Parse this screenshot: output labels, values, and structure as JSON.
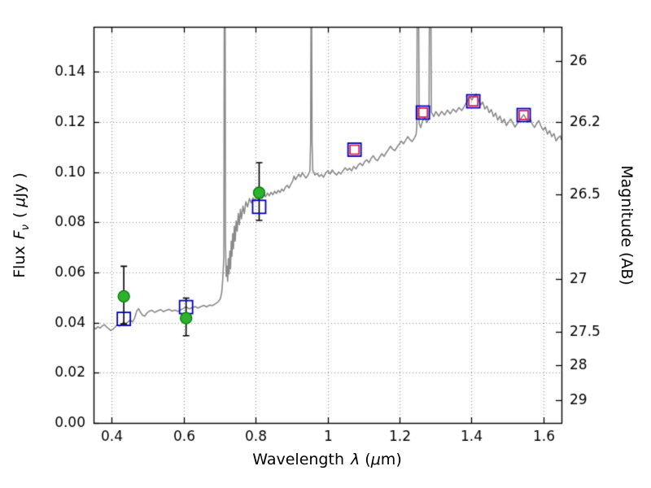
{
  "figure": {
    "background": "#ffffff"
  },
  "labels": {
    "x_word": "Wavelength",
    "x_lambda": "λ",
    "x_unit_open": "(",
    "x_mu": "μ",
    "x_unit_close": "m)",
    "flux_word": "Flux",
    "flux_symbol": "F",
    "flux_sub": "ν",
    "flux_unit_open": "(",
    "flux_mu": "μ",
    "flux_unit_close": "Jy )",
    "right_axis": "Magnitude (AB)"
  },
  "chart_data": {
    "type": "line",
    "xlabel": "Wavelength λ (μm)",
    "ylabel_left": "Flux Fν ( μJy )",
    "ylabel_right": "Magnitude (AB)",
    "xlim": [
      0.35,
      1.65
    ],
    "ylim": [
      0,
      0.158
    ],
    "grid": "dotted",
    "legend": "none",
    "x_ticks": [
      {
        "v": 0.4,
        "label": "0.4"
      },
      {
        "v": 0.6,
        "label": "0.6"
      },
      {
        "v": 0.8,
        "label": "0.8"
      },
      {
        "v": 1.0,
        "label": "1"
      },
      {
        "v": 1.2,
        "label": "1.2"
      },
      {
        "v": 1.4,
        "label": "1.4"
      },
      {
        "v": 1.6,
        "label": "1.6"
      }
    ],
    "y_ticks_left": [
      {
        "v": 0.0,
        "label": "0.00"
      },
      {
        "v": 0.02,
        "label": "0.02"
      },
      {
        "v": 0.04,
        "label": "0.04"
      },
      {
        "v": 0.06,
        "label": "0.06"
      },
      {
        "v": 0.08,
        "label": "0.08"
      },
      {
        "v": 0.1,
        "label": "0.10"
      },
      {
        "v": 0.12,
        "label": "0.12"
      },
      {
        "v": 0.14,
        "label": "0.14"
      }
    ],
    "y_ticks_right": [
      {
        "label": "26",
        "flux": 0.1445
      },
      {
        "label": "26.2",
        "flux": 0.1202
      },
      {
        "label": "26.5",
        "flux": 0.0912
      },
      {
        "label": "27",
        "flux": 0.0575
      },
      {
        "label": "27.5",
        "flux": 0.0363
      },
      {
        "label": "28",
        "flux": 0.0229
      },
      {
        "label": "29",
        "flux": 0.00912
      }
    ],
    "colors": {
      "spectrum": "#8a8a8a",
      "grid": "#8c8c8c",
      "axis": "#000000",
      "errorbar": "#000000",
      "model_square": "#0000bb",
      "red_square": "#d62755",
      "circle_fill": "#2bb32b",
      "circle_edge": "#0d7a0d"
    },
    "series": {
      "model_squares": {
        "name": "model photometry (open blue squares)",
        "marker": "open-square",
        "size": 16,
        "color": "#0000bb",
        "points": [
          [
            0.434,
            0.0415
          ],
          [
            0.607,
            0.0462
          ],
          [
            0.81,
            0.0862
          ],
          [
            1.075,
            0.109
          ],
          [
            1.265,
            0.1238
          ],
          [
            1.405,
            0.1283
          ],
          [
            1.545,
            0.1228
          ]
        ]
      },
      "observed_red_squares": {
        "name": "observed IR photometry (open red squares)",
        "marker": "open-square",
        "size": 11,
        "color": "#d62755",
        "points": [
          [
            1.075,
            0.109
          ],
          [
            1.265,
            0.1238
          ],
          [
            1.405,
            0.1283
          ],
          [
            1.545,
            0.1228
          ]
        ]
      },
      "observed_circles": {
        "name": "observed optical photometry (green circles with error bars)",
        "marker": "circle",
        "size": 14,
        "color": "#2bb32b",
        "edge": "#0d7a0d",
        "points": [
          [
            0.434,
            0.0505
          ],
          [
            0.607,
            0.0418
          ],
          [
            0.81,
            0.0918
          ]
        ],
        "yerr_lo": [
          0.011,
          0.007,
          0.011
        ],
        "yerr_hi": [
          0.012,
          0.008,
          0.012
        ]
      },
      "spectrum": {
        "name": "best-fit galaxy spectrum",
        "color": "#8a8a8a",
        "points": [
          [
            0.35,
            0.038
          ],
          [
            0.356,
            0.0375
          ],
          [
            0.362,
            0.0384
          ],
          [
            0.368,
            0.0378
          ],
          [
            0.374,
            0.0387
          ],
          [
            0.38,
            0.0392
          ],
          [
            0.386,
            0.0383
          ],
          [
            0.392,
            0.0376
          ],
          [
            0.398,
            0.0369
          ],
          [
            0.404,
            0.0374
          ],
          [
            0.41,
            0.0383
          ],
          [
            0.416,
            0.0391
          ],
          [
            0.422,
            0.0386
          ],
          [
            0.428,
            0.0395
          ],
          [
            0.434,
            0.0401
          ],
          [
            0.44,
            0.0396
          ],
          [
            0.446,
            0.0404
          ],
          [
            0.452,
            0.041
          ],
          [
            0.458,
            0.0403
          ],
          [
            0.464,
            0.0418
          ],
          [
            0.47,
            0.0447
          ],
          [
            0.475,
            0.0456
          ],
          [
            0.48,
            0.0442
          ],
          [
            0.486,
            0.043
          ],
          [
            0.492,
            0.0426
          ],
          [
            0.498,
            0.0438
          ],
          [
            0.504,
            0.0445
          ],
          [
            0.512,
            0.0449
          ],
          [
            0.52,
            0.0441
          ],
          [
            0.528,
            0.0447
          ],
          [
            0.536,
            0.0452
          ],
          [
            0.544,
            0.0444
          ],
          [
            0.552,
            0.0449
          ],
          [
            0.56,
            0.0453
          ],
          [
            0.568,
            0.0446
          ],
          [
            0.576,
            0.045
          ],
          [
            0.584,
            0.0445
          ],
          [
            0.592,
            0.0451
          ],
          [
            0.6,
            0.0457
          ],
          [
            0.608,
            0.0462
          ],
          [
            0.616,
            0.0455
          ],
          [
            0.624,
            0.046
          ],
          [
            0.632,
            0.0464
          ],
          [
            0.64,
            0.0458
          ],
          [
            0.648,
            0.0464
          ],
          [
            0.656,
            0.0469
          ],
          [
            0.664,
            0.0463
          ],
          [
            0.672,
            0.047
          ],
          [
            0.68,
            0.0468
          ],
          [
            0.688,
            0.0475
          ],
          [
            0.696,
            0.0483
          ],
          [
            0.702,
            0.0495
          ],
          [
            0.706,
            0.052
          ],
          [
            0.709,
            0.0575
          ],
          [
            0.712,
            0.066
          ],
          [
            0.7135,
            0.2
          ],
          [
            0.715,
            0.2
          ],
          [
            0.7165,
            0.072
          ],
          [
            0.7185,
            0.0585
          ],
          [
            0.7205,
            0.0625
          ],
          [
            0.7225,
            0.0565
          ],
          [
            0.7245,
            0.0655
          ],
          [
            0.7265,
            0.0595
          ],
          [
            0.7285,
            0.0685
          ],
          [
            0.7305,
            0.0615
          ],
          [
            0.7325,
            0.0725
          ],
          [
            0.7345,
            0.0665
          ],
          [
            0.7365,
            0.0755
          ],
          [
            0.7385,
            0.0695
          ],
          [
            0.741,
            0.0785
          ],
          [
            0.7435,
            0.0725
          ],
          [
            0.746,
            0.0805
          ],
          [
            0.749,
            0.0765
          ],
          [
            0.752,
            0.0835
          ],
          [
            0.755,
            0.079
          ],
          [
            0.758,
            0.0852
          ],
          [
            0.761,
            0.0815
          ],
          [
            0.765,
            0.0865
          ],
          [
            0.769,
            0.0835
          ],
          [
            0.773,
            0.0882
          ],
          [
            0.778,
            0.0862
          ],
          [
            0.783,
            0.0895
          ],
          [
            0.788,
            0.0878
          ],
          [
            0.793,
            0.0898
          ],
          [
            0.798,
            0.0885
          ],
          [
            0.803,
            0.0903
          ],
          [
            0.808,
            0.089
          ],
          [
            0.813,
            0.0908
          ],
          [
            0.818,
            0.0896
          ],
          [
            0.823,
            0.0913
          ],
          [
            0.828,
            0.0902
          ],
          [
            0.833,
            0.0917
          ],
          [
            0.838,
            0.0906
          ],
          [
            0.843,
            0.092
          ],
          [
            0.848,
            0.091
          ],
          [
            0.853,
            0.0924
          ],
          [
            0.858,
            0.0915
          ],
          [
            0.863,
            0.0928
          ],
          [
            0.868,
            0.0919
          ],
          [
            0.873,
            0.0933
          ],
          [
            0.878,
            0.0925
          ],
          [
            0.883,
            0.094
          ],
          [
            0.888,
            0.0948
          ],
          [
            0.893,
            0.0937
          ],
          [
            0.898,
            0.0952
          ],
          [
            0.903,
            0.0965
          ],
          [
            0.907,
            0.0985
          ],
          [
            0.911,
            0.097
          ],
          [
            0.915,
            0.098
          ],
          [
            0.92,
            0.0992
          ],
          [
            0.925,
            0.0981
          ],
          [
            0.93,
            0.0999
          ],
          [
            0.935,
            0.0987
          ],
          [
            0.94,
            0.0977
          ],
          [
            0.945,
            0.0986
          ],
          [
            0.951,
            0.1005
          ],
          [
            0.953,
            0.112
          ],
          [
            0.955,
            0.2
          ],
          [
            0.957,
            0.112
          ],
          [
            0.959,
            0.1008
          ],
          [
            0.965,
            0.0989
          ],
          [
            0.971,
            0.0996
          ],
          [
            0.977,
            0.0983
          ],
          [
            0.983,
            0.0991
          ],
          [
            0.989,
            0.098
          ],
          [
            0.995,
            0.0997
          ],
          [
            1.001,
            0.1006
          ],
          [
            1.007,
            0.0993
          ],
          [
            1.013,
            0.1009
          ],
          [
            1.019,
            0.0997
          ],
          [
            1.025,
            0.0989
          ],
          [
            1.031,
            0.1001
          ],
          [
            1.037,
            0.0993
          ],
          [
            1.043,
            0.1006
          ],
          [
            1.049,
            0.1018
          ],
          [
            1.055,
            0.1008
          ],
          [
            1.061,
            0.1016
          ],
          [
            1.067,
            0.1006
          ],
          [
            1.073,
            0.1023
          ],
          [
            1.079,
            0.1013
          ],
          [
            1.085,
            0.1028
          ],
          [
            1.091,
            0.1036
          ],
          [
            1.097,
            0.1026
          ],
          [
            1.103,
            0.1042
          ],
          [
            1.109,
            0.105
          ],
          [
            1.115,
            0.1038
          ],
          [
            1.121,
            0.1055
          ],
          [
            1.127,
            0.1066
          ],
          [
            1.133,
            0.1052
          ],
          [
            1.139,
            0.1046
          ],
          [
            1.145,
            0.1061
          ],
          [
            1.151,
            0.1074
          ],
          [
            1.157,
            0.1063
          ],
          [
            1.163,
            0.1078
          ],
          [
            1.169,
            0.109
          ],
          [
            1.175,
            0.1104
          ],
          [
            1.181,
            0.1092
          ],
          [
            1.187,
            0.1086
          ],
          [
            1.193,
            0.11
          ],
          [
            1.199,
            0.1112
          ],
          [
            1.205,
            0.1124
          ],
          [
            1.211,
            0.1113
          ],
          [
            1.217,
            0.1128
          ],
          [
            1.223,
            0.1142
          ],
          [
            1.229,
            0.113
          ],
          [
            1.235,
            0.1122
          ],
          [
            1.241,
            0.1136
          ],
          [
            1.246,
            0.115
          ],
          [
            1.248,
            0.118
          ],
          [
            1.25,
            0.2
          ],
          [
            1.252,
            0.2
          ],
          [
            1.2545,
            0.1195
          ],
          [
            1.259,
            0.1178
          ],
          [
            1.264,
            0.1205
          ],
          [
            1.27,
            0.1218
          ],
          [
            1.276,
            0.1198
          ],
          [
            1.282,
            0.1215
          ],
          [
            1.284,
            0.2
          ],
          [
            1.286,
            0.2
          ],
          [
            1.2885,
            0.124
          ],
          [
            1.295,
            0.1222
          ],
          [
            1.301,
            0.1242
          ],
          [
            1.309,
            0.1224
          ],
          [
            1.317,
            0.1243
          ],
          [
            1.325,
            0.1228
          ],
          [
            1.333,
            0.1248
          ],
          [
            1.341,
            0.1233
          ],
          [
            1.349,
            0.1252
          ],
          [
            1.357,
            0.124
          ],
          [
            1.365,
            0.1258
          ],
          [
            1.373,
            0.1246
          ],
          [
            1.381,
            0.1266
          ],
          [
            1.389,
            0.1286
          ],
          [
            1.395,
            0.1302
          ],
          [
            1.401,
            0.1288
          ],
          [
            1.407,
            0.1304
          ],
          [
            1.413,
            0.1312
          ],
          [
            1.419,
            0.1292
          ],
          [
            1.425,
            0.1268
          ],
          [
            1.431,
            0.128
          ],
          [
            1.437,
            0.1252
          ],
          [
            1.443,
            0.1264
          ],
          [
            1.449,
            0.1238
          ],
          [
            1.455,
            0.125
          ],
          [
            1.461,
            0.1222
          ],
          [
            1.467,
            0.1236
          ],
          [
            1.473,
            0.1208
          ],
          [
            1.479,
            0.1224
          ],
          [
            1.485,
            0.1198
          ],
          [
            1.491,
            0.1212
          ],
          [
            1.497,
            0.1186
          ],
          [
            1.503,
            0.12
          ],
          [
            1.509,
            0.1212
          ],
          [
            1.515,
            0.1196
          ],
          [
            1.521,
            0.118
          ],
          [
            1.527,
            0.1194
          ],
          [
            1.533,
            0.1206
          ],
          [
            1.539,
            0.1218
          ],
          [
            1.545,
            0.123
          ],
          [
            1.551,
            0.1215
          ],
          [
            1.557,
            0.12
          ],
          [
            1.563,
            0.1214
          ],
          [
            1.569,
            0.1192
          ],
          [
            1.575,
            0.1178
          ],
          [
            1.581,
            0.1194
          ],
          [
            1.587,
            0.1206
          ],
          [
            1.593,
            0.1184
          ],
          [
            1.599,
            0.1168
          ],
          [
            1.605,
            0.118
          ],
          [
            1.611,
            0.1152
          ],
          [
            1.617,
            0.1166
          ],
          [
            1.623,
            0.1142
          ],
          [
            1.629,
            0.1154
          ],
          [
            1.635,
            0.1125
          ],
          [
            1.641,
            0.1138
          ],
          [
            1.647,
            0.1145
          ],
          [
            1.65,
            0.1128
          ]
        ]
      }
    }
  }
}
